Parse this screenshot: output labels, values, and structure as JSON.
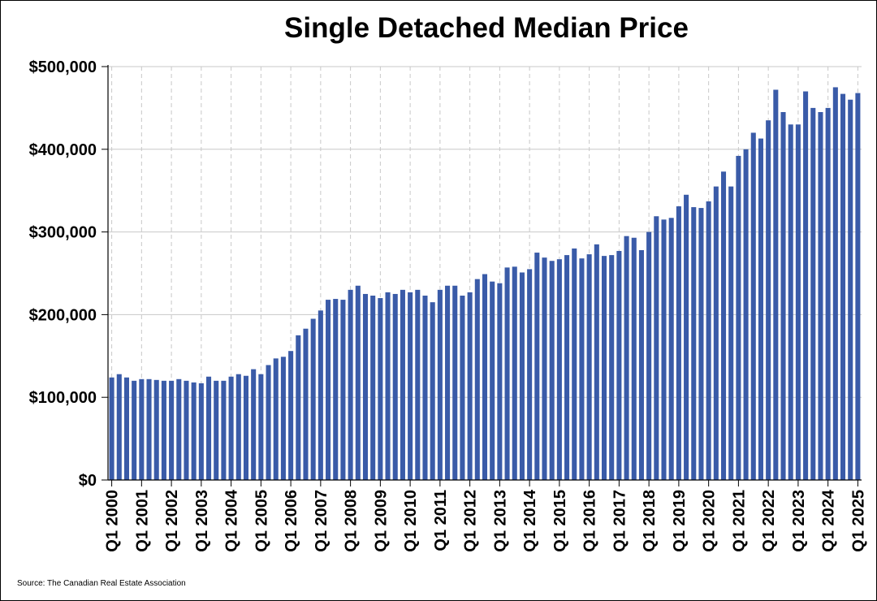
{
  "chart_data": {
    "type": "bar",
    "title": "Single Detached Median Price",
    "source": "Source: The Canadian Real Estate Association",
    "xlabel": "",
    "ylabel": "",
    "ylim": [
      0,
      500000
    ],
    "grid": true,
    "bar_color": "#3A5BA8",
    "y_ticks": [
      {
        "value": 0,
        "label": "$0"
      },
      {
        "value": 100000,
        "label": "$100,000"
      },
      {
        "value": 200000,
        "label": "$200,000"
      },
      {
        "value": 300000,
        "label": "$300,000"
      },
      {
        "value": 400000,
        "label": "$400,000"
      },
      {
        "value": 500000,
        "label": "$500,000"
      }
    ],
    "x_tick_labels": [
      "Q1 2000",
      "Q1 2001",
      "Q1 2002",
      "Q1 2003",
      "Q1 2004",
      "Q1 2005",
      "Q1 2006",
      "Q1 2007",
      "Q1 2008",
      "Q1 2009",
      "Q1 2010",
      "Q1 2011",
      "Q1 2012",
      "Q1 2013",
      "Q1 2014",
      "Q1 2015",
      "Q1 2016",
      "Q1 2017",
      "Q1 2018",
      "Q1 2019",
      "Q1 2020",
      "Q1 2021",
      "Q1 2022",
      "Q1 2023",
      "Q1 2024",
      "Q1 2025"
    ],
    "categories": [
      "Q1 2000",
      "Q2 2000",
      "Q3 2000",
      "Q4 2000",
      "Q1 2001",
      "Q2 2001",
      "Q3 2001",
      "Q4 2001",
      "Q1 2002",
      "Q2 2002",
      "Q3 2002",
      "Q4 2002",
      "Q1 2003",
      "Q2 2003",
      "Q3 2003",
      "Q4 2003",
      "Q1 2004",
      "Q2 2004",
      "Q3 2004",
      "Q4 2004",
      "Q1 2005",
      "Q2 2005",
      "Q3 2005",
      "Q4 2005",
      "Q1 2006",
      "Q2 2006",
      "Q3 2006",
      "Q4 2006",
      "Q1 2007",
      "Q2 2007",
      "Q3 2007",
      "Q4 2007",
      "Q1 2008",
      "Q2 2008",
      "Q3 2008",
      "Q4 2008",
      "Q1 2009",
      "Q2 2009",
      "Q3 2009",
      "Q4 2009",
      "Q1 2010",
      "Q2 2010",
      "Q3 2010",
      "Q4 2010",
      "Q1 2011",
      "Q2 2011",
      "Q3 2011",
      "Q4 2011",
      "Q1 2012",
      "Q2 2012",
      "Q3 2012",
      "Q4 2012",
      "Q1 2013",
      "Q2 2013",
      "Q3 2013",
      "Q4 2013",
      "Q1 2014",
      "Q2 2014",
      "Q3 2014",
      "Q4 2014",
      "Q1 2015",
      "Q2 2015",
      "Q3 2015",
      "Q4 2015",
      "Q1 2016",
      "Q2 2016",
      "Q3 2016",
      "Q4 2016",
      "Q1 2017",
      "Q2 2017",
      "Q3 2017",
      "Q4 2017",
      "Q1 2018",
      "Q2 2018",
      "Q3 2018",
      "Q4 2018",
      "Q1 2019",
      "Q2 2019",
      "Q3 2019",
      "Q4 2019",
      "Q1 2020",
      "Q2 2020",
      "Q3 2020",
      "Q4 2020",
      "Q1 2021",
      "Q2 2021",
      "Q3 2021",
      "Q4 2021",
      "Q1 2022",
      "Q2 2022",
      "Q3 2022",
      "Q4 2022",
      "Q1 2023",
      "Q2 2023",
      "Q3 2023",
      "Q4 2023",
      "Q1 2024",
      "Q2 2024",
      "Q3 2024",
      "Q4 2024",
      "Q1 2025"
    ],
    "values": [
      124000,
      128000,
      124000,
      120000,
      122000,
      122000,
      121000,
      120000,
      120000,
      122000,
      120000,
      118000,
      117000,
      125000,
      120000,
      120000,
      125000,
      128000,
      126000,
      134000,
      128000,
      139000,
      147000,
      149000,
      156000,
      175000,
      183000,
      195000,
      205000,
      218000,
      219000,
      218000,
      230000,
      235000,
      225000,
      223000,
      220000,
      227000,
      225000,
      230000,
      227000,
      230000,
      223000,
      215000,
      230000,
      235000,
      235000,
      223000,
      227000,
      243000,
      249000,
      240000,
      238000,
      257000,
      258000,
      251000,
      255000,
      275000,
      269000,
      265000,
      267000,
      272000,
      280000,
      268000,
      273000,
      285000,
      271000,
      272000,
      277000,
      295000,
      293000,
      278000,
      300000,
      319000,
      315000,
      317000,
      331000,
      345000,
      330000,
      329000,
      337000,
      355000,
      373000,
      355000,
      392000,
      400000,
      420000,
      413000,
      435000,
      472000,
      445000,
      430000,
      430000,
      470000,
      450000,
      445000,
      450000,
      475000,
      467000,
      460000,
      468000
    ]
  }
}
